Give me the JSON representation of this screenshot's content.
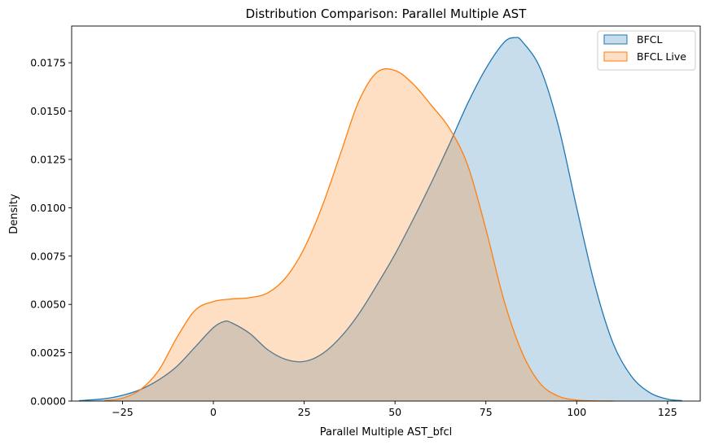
{
  "chart_data": {
    "type": "area",
    "title": "Distribution Comparison: Parallel Multiple AST",
    "xlabel": "Parallel Multiple AST_bfcl",
    "ylabel": "Density",
    "xlim": [
      -39,
      134
    ],
    "ylim": [
      0,
      0.0194
    ],
    "xticks": [
      -25,
      0,
      25,
      50,
      75,
      100,
      125
    ],
    "xtick_labels": [
      "−25",
      "0",
      "25",
      "50",
      "75",
      "100",
      "125"
    ],
    "yticks": [
      0,
      0.0025,
      0.005,
      0.0075,
      0.01,
      0.0125,
      0.015,
      0.0175
    ],
    "ytick_labels": [
      "0.0000",
      "0.0025",
      "0.0050",
      "0.0075",
      "0.0100",
      "0.0125",
      "0.0150",
      "0.0175"
    ],
    "legend_position": "top-right",
    "series": [
      {
        "name": "BFCL",
        "color": "#1f77b4",
        "x": [
          -37,
          -30,
          -25,
          -20,
          -15,
          -10,
          -5,
          0,
          3,
          5,
          10,
          15,
          20,
          25,
          30,
          35,
          40,
          45,
          50,
          55,
          60,
          65,
          70,
          75,
          80,
          83,
          85,
          90,
          95,
          100,
          105,
          110,
          115,
          120,
          125,
          129
        ],
        "y": [
          2e-05,
          0.00012,
          0.0003,
          0.0006,
          0.0011,
          0.0018,
          0.0028,
          0.0038,
          0.00412,
          0.00405,
          0.0035,
          0.00265,
          0.00215,
          0.00205,
          0.00245,
          0.0033,
          0.0045,
          0.006,
          0.0076,
          0.0094,
          0.0113,
          0.0133,
          0.0154,
          0.0172,
          0.01855,
          0.0188,
          0.0186,
          0.0172,
          0.0142,
          0.01,
          0.006,
          0.003,
          0.0013,
          0.00045,
          0.0001,
          2e-05
        ]
      },
      {
        "name": "BFCL Live",
        "color": "#ff7f0e",
        "x": [
          -30,
          -25,
          -20,
          -15,
          -10,
          -5,
          0,
          5,
          10,
          15,
          20,
          25,
          30,
          35,
          40,
          45,
          50,
          55,
          60,
          65,
          70,
          75,
          80,
          85,
          90,
          95,
          100,
          105,
          110
        ],
        "y": [
          2e-05,
          0.00015,
          0.0006,
          0.0016,
          0.0033,
          0.0047,
          0.00515,
          0.00528,
          0.00535,
          0.0056,
          0.0064,
          0.0079,
          0.0101,
          0.0128,
          0.0155,
          0.017,
          0.0171,
          0.0164,
          0.0153,
          0.0141,
          0.0122,
          0.0089,
          0.0052,
          0.0025,
          0.0009,
          0.00025,
          5e-05,
          1e-05,
          0.0
        ]
      }
    ]
  }
}
